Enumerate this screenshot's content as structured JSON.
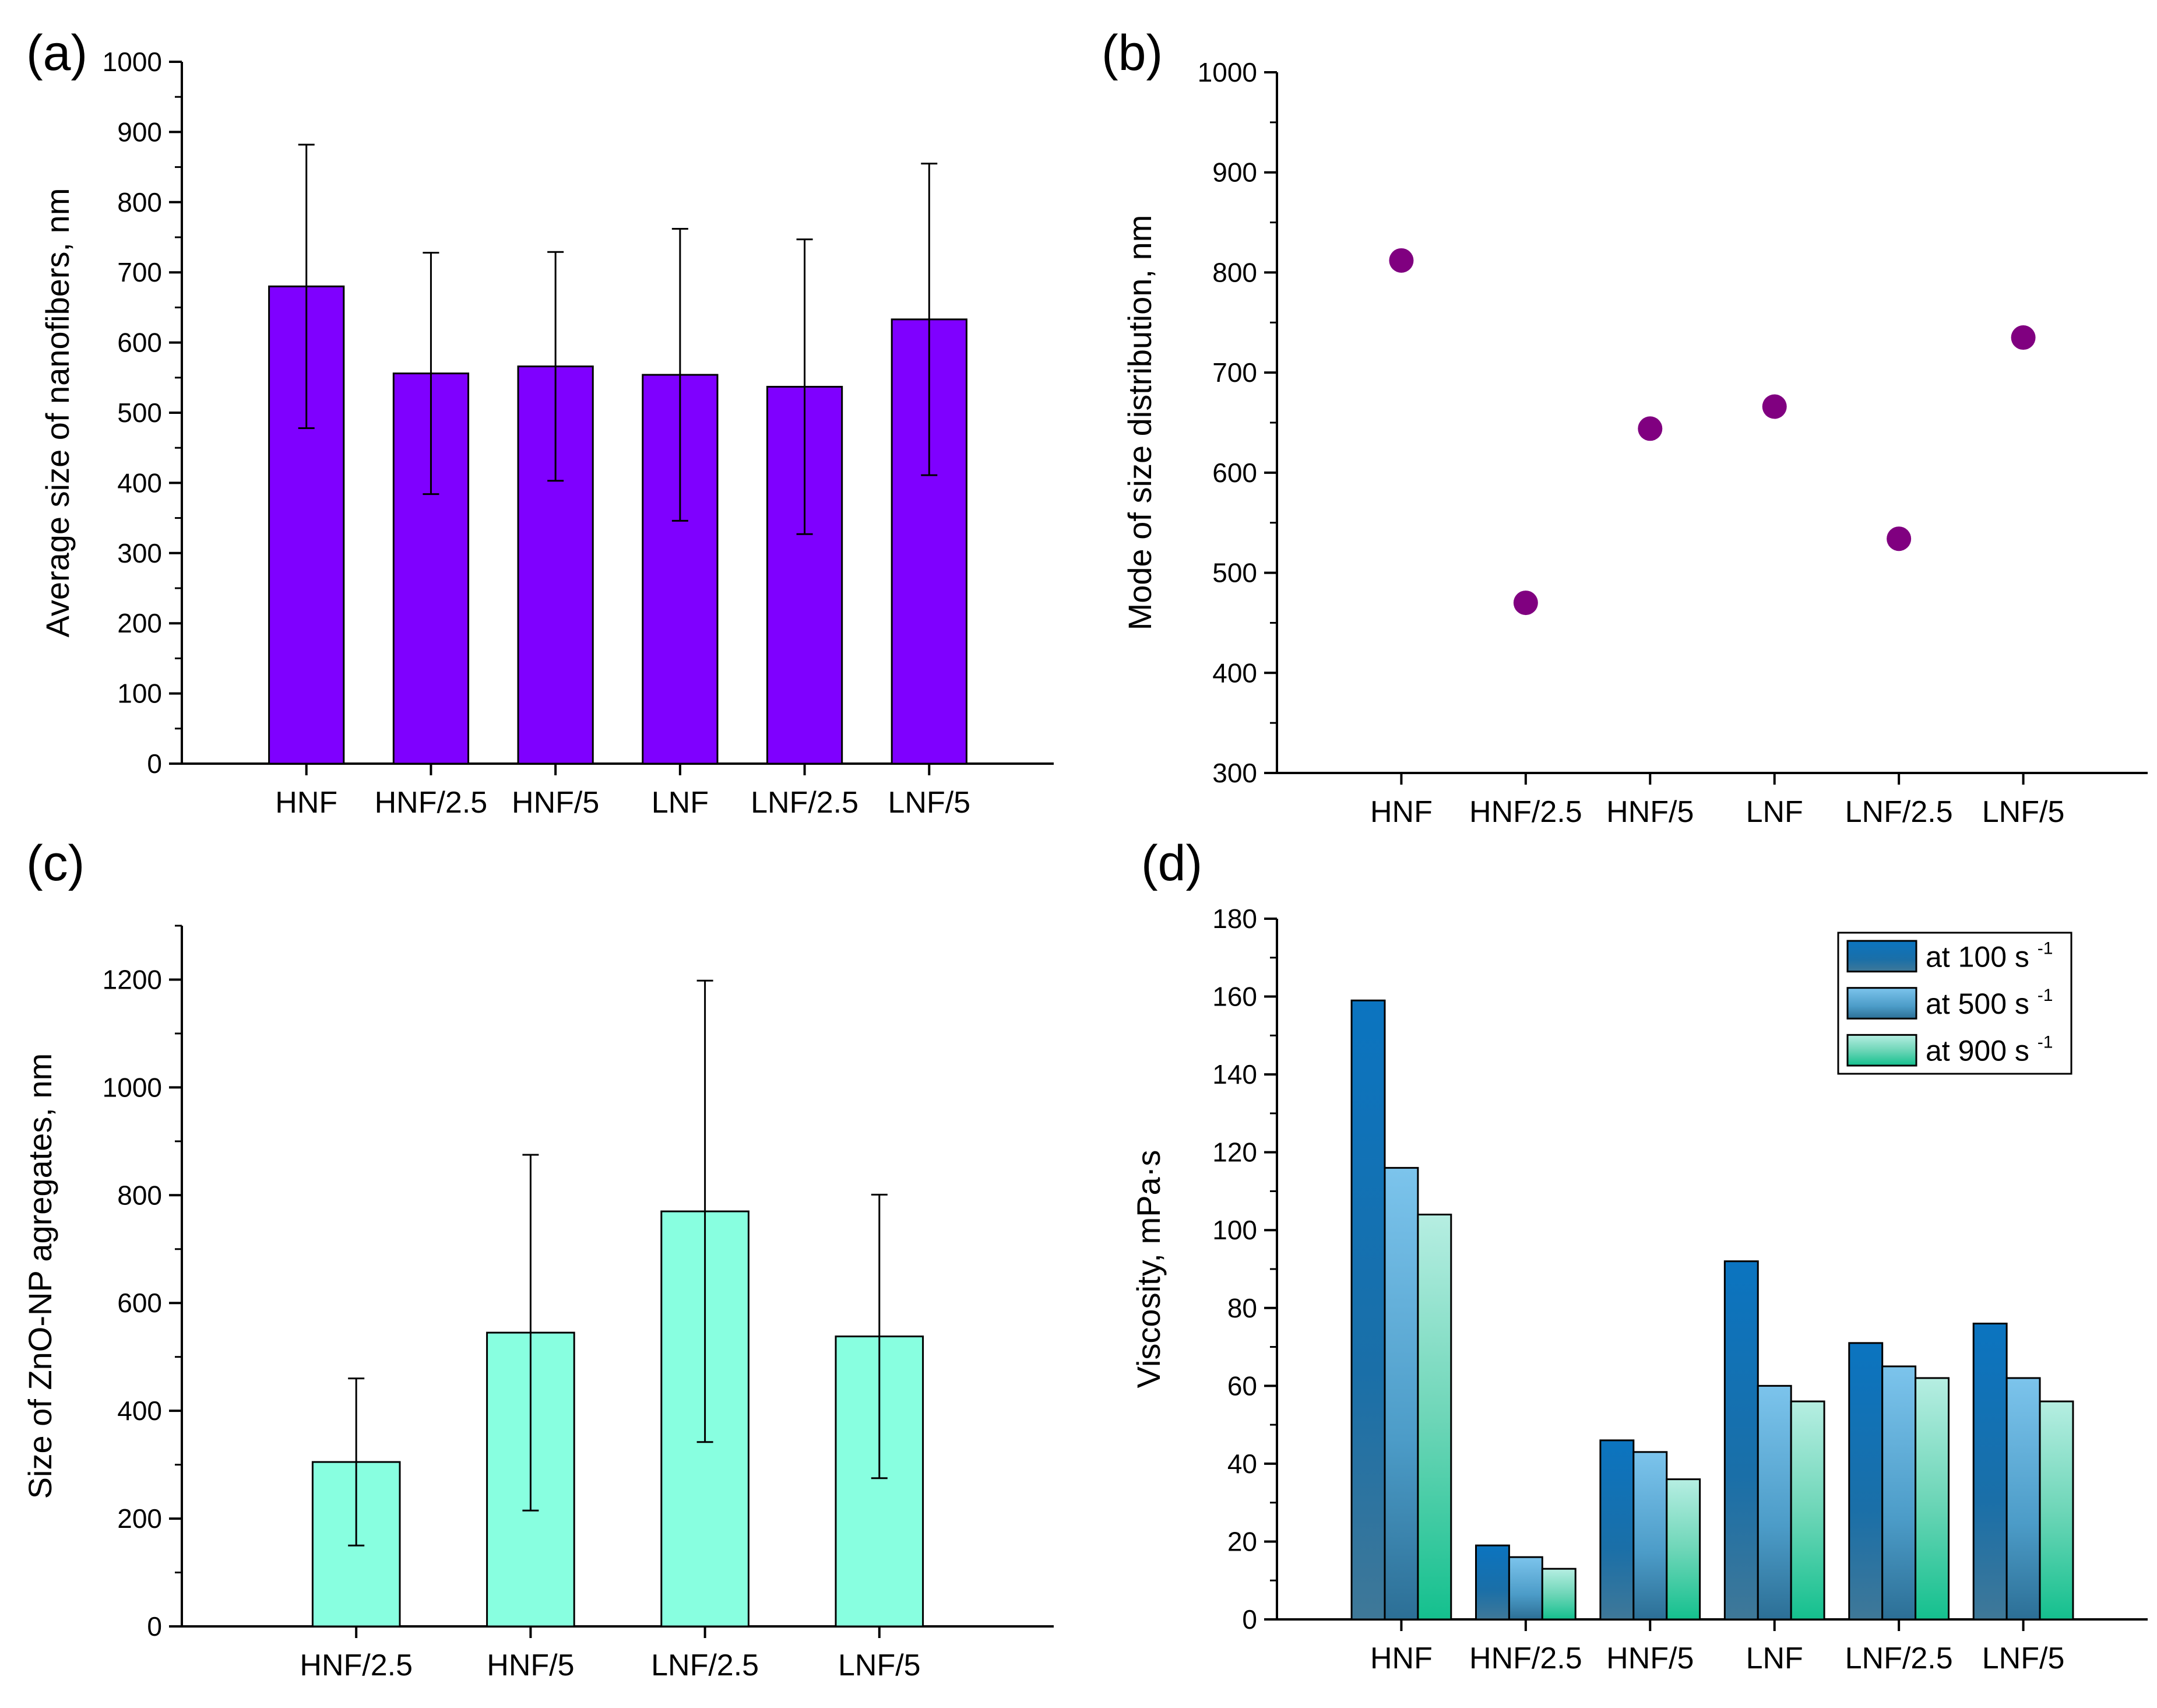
{
  "chart_data": [
    {
      "panel": "a",
      "panel_label": "(a)",
      "type": "bar",
      "ylabel": "Average size of nanofibers, nm",
      "categories": [
        "HNF",
        "HNF/2.5",
        "HNF/5",
        "LNF",
        "LNF/2.5",
        "LNF/5"
      ],
      "values": [
        680,
        556,
        566,
        554,
        537,
        633
      ],
      "errors": [
        202,
        172,
        163,
        208,
        210,
        222
      ],
      "ylim": [
        0,
        1000
      ],
      "yticks": [
        0,
        100,
        200,
        300,
        400,
        500,
        600,
        700,
        800,
        900,
        1000
      ],
      "color": "#7f00ff"
    },
    {
      "panel": "b",
      "panel_label": "(b)",
      "type": "scatter",
      "ylabel": "Mode of size distribution, nm",
      "categories": [
        "HNF",
        "HNF/2.5",
        "HNF/5",
        "LNF",
        "LNF/2.5",
        "LNF/5"
      ],
      "values": [
        812,
        470,
        644,
        666,
        534,
        735
      ],
      "ylim": [
        300,
        1000
      ],
      "yticks": [
        300,
        400,
        500,
        600,
        700,
        800,
        900,
        1000
      ],
      "color": "#800080"
    },
    {
      "panel": "c",
      "panel_label": "(c)",
      "type": "bar",
      "ylabel": "Size of ZnO-NP agregates, nm",
      "categories": [
        "HNF/2.5",
        "HNF/5",
        "LNF/2.5",
        "LNF/5"
      ],
      "values": [
        305,
        545,
        770,
        538
      ],
      "errors": [
        155,
        330,
        428,
        263
      ],
      "ylim": [
        0,
        1300
      ],
      "yticks": [
        0,
        200,
        400,
        600,
        800,
        1000,
        1200
      ],
      "color": "#88ffe0"
    },
    {
      "panel": "d",
      "panel_label": "(d)",
      "type": "bar",
      "ylabel": "Viscosity, mPa·s",
      "categories": [
        "HNF",
        "HNF/2.5",
        "HNF/5",
        "LNF",
        "LNF/2.5",
        "LNF/5"
      ],
      "series": [
        {
          "name": "at 100 s",
          "sup": "-1",
          "values": [
            159,
            19,
            46,
            92,
            71,
            76
          ]
        },
        {
          "name": "at 500 s",
          "sup": "-1",
          "values": [
            116,
            16,
            43,
            60,
            65,
            62
          ]
        },
        {
          "name": "at 900 s",
          "sup": "-1",
          "values": [
            104,
            13,
            36,
            56,
            62,
            56
          ]
        }
      ],
      "ylim": [
        0,
        180
      ],
      "yticks": [
        0,
        20,
        40,
        60,
        80,
        100,
        120,
        140,
        160,
        180
      ],
      "legend_position": "top-right"
    }
  ]
}
